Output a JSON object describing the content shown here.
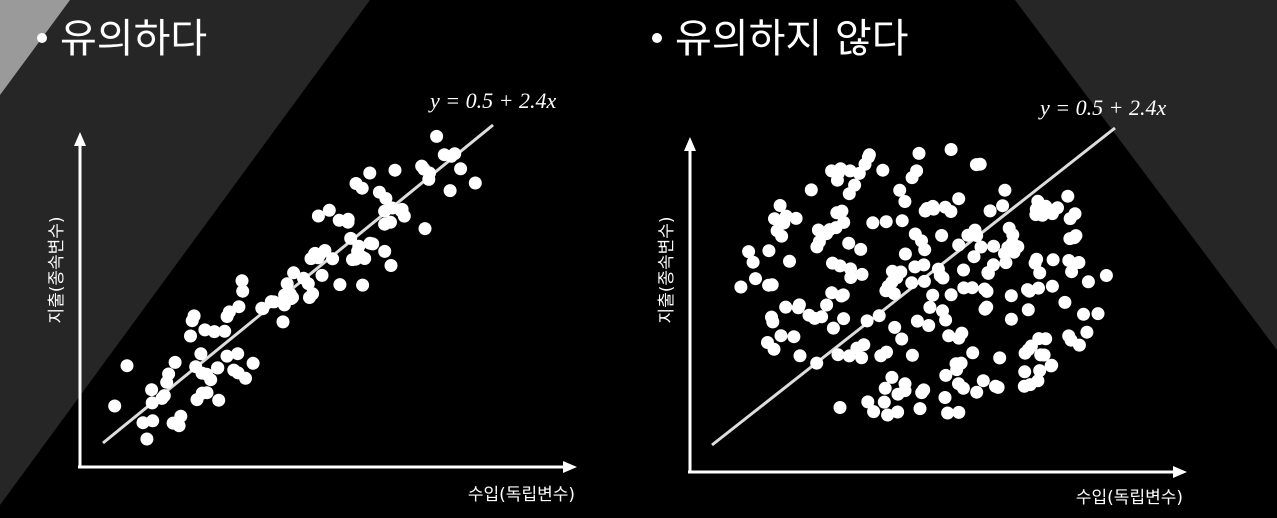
{
  "left": {
    "heading": "유의하다",
    "equation": "y = 0.5 + 2.4x",
    "y_label": "지출(종속변수)",
    "x_label": "수입(독립변수)"
  },
  "right": {
    "heading": "유의하지 않다",
    "equation": "y = 0.5 + 2.4x",
    "y_label": "지출(종속변수)",
    "x_label": "수입(독립변수)"
  }
}
